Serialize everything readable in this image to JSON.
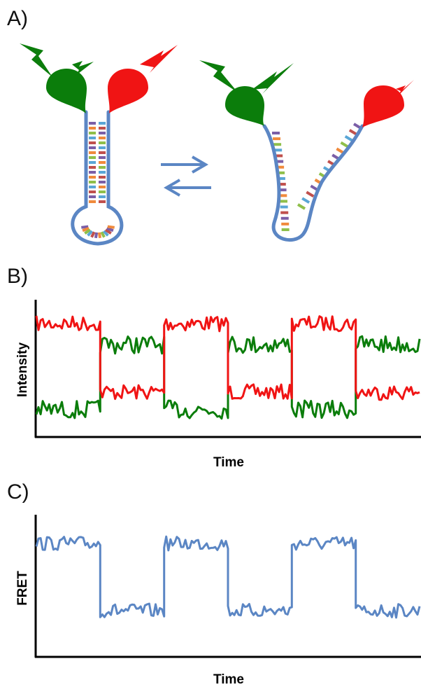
{
  "panels": {
    "a": {
      "label": "A)"
    },
    "b": {
      "label": "B)",
      "ylabel": "Intensity",
      "xlabel": "Time"
    },
    "c": {
      "label": "C)",
      "ylabel": "FRET",
      "xlabel": "Time"
    }
  },
  "colors": {
    "donor": "#0b7d0b",
    "acceptor": "#f01414",
    "strand": "#5b86c4",
    "bases": [
      "#7b5ea7",
      "#f08a3c",
      "#8fbf4a",
      "#5aa6d6",
      "#c0504d"
    ]
  },
  "chart_data": [
    {
      "type": "line",
      "panel": "B",
      "ylabel": "Intensity",
      "xlabel": "Time",
      "grid": false,
      "states": [
        "high",
        "low",
        "high",
        "low",
        "high",
        "low"
      ],
      "series": [
        {
          "name": "",
          "color": "#f01414",
          "values": [
            1,
            0,
            1,
            0,
            1,
            0
          ]
        },
        {
          "name": "",
          "color": "#0b7d0b",
          "values": [
            0,
            1,
            0,
            1,
            0,
            1
          ]
        }
      ]
    },
    {
      "type": "line",
      "panel": "C",
      "ylabel": "FRET",
      "xlabel": "Time",
      "grid": false,
      "series": [
        {
          "name": "",
          "color": "#5b86c4",
          "values": [
            1,
            0,
            1,
            0,
            1,
            0
          ]
        }
      ]
    }
  ]
}
